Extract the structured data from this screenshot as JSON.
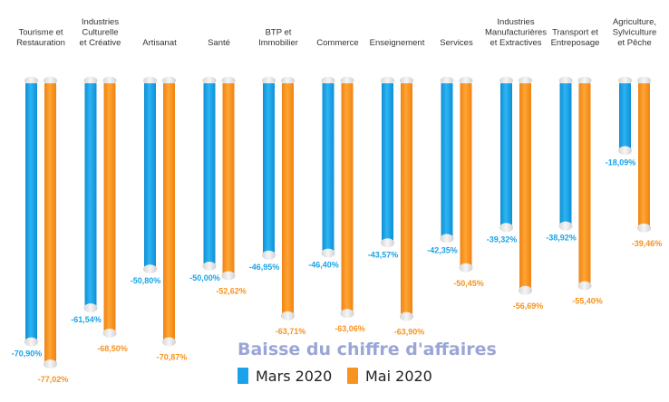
{
  "chart_data": {
    "type": "bar",
    "title": "Baisse du chiffre d'affaires",
    "categories": [
      [
        "Tourisme et",
        "Restauration"
      ],
      [
        "Industries",
        "Culturelle",
        "et Créative"
      ],
      [
        "Artisanat"
      ],
      [
        "Santé"
      ],
      [
        "BTP et",
        "Immobilier"
      ],
      [
        "Commerce"
      ],
      [
        "Enseignement"
      ],
      [
        "Services"
      ],
      [
        "Industries",
        "Manufacturières",
        "et Extractives"
      ],
      [
        "Transport et",
        "Entreposage"
      ],
      [
        "Agriculture,",
        "Sylviculture",
        "et Pêche"
      ]
    ],
    "series": [
      {
        "name": "Mars 2020",
        "color": "#1aa3e8",
        "values": [
          -70.9,
          -61.54,
          -50.8,
          -50.0,
          -46.95,
          -46.4,
          -43.57,
          -42.35,
          -39.32,
          -38.92,
          -18.09
        ],
        "labels": [
          "-70,90%",
          "-61,54%",
          "-50,80%",
          "-50,00%",
          "-46,95%",
          "-46,40%",
          "-43,57%",
          "-42,35%",
          "-39,32%",
          "-38,92%",
          "-18,09%"
        ]
      },
      {
        "name": "Mai 2020",
        "color": "#f7931e",
        "values": [
          -77.02,
          -68.5,
          -70.87,
          -52.62,
          -63.71,
          -63.06,
          -63.9,
          -50.45,
          -56.69,
          -55.4,
          -39.46
        ],
        "labels": [
          "-77,02%",
          "-68,50%",
          "-70,87%",
          "-52,62%",
          "-63,71%",
          "-63,06%",
          "-63,90%",
          "-50,45%",
          "-56,69%",
          "-55,40%",
          "-39,46%"
        ]
      }
    ],
    "ylim": [
      -80,
      0
    ],
    "grid": false,
    "legend_position": "bottom"
  }
}
